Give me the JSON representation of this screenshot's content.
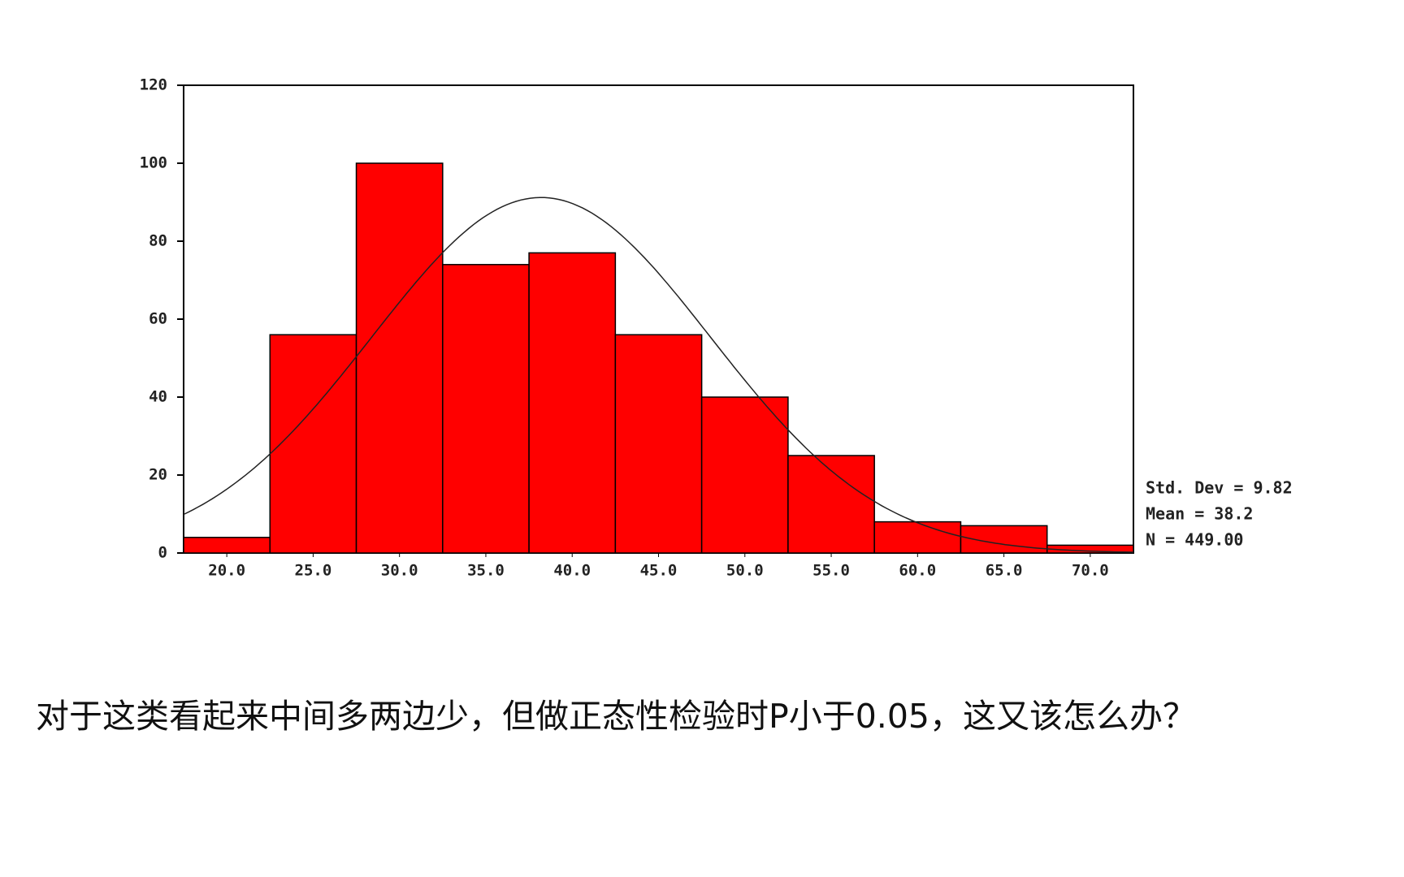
{
  "chart_data": {
    "type": "histogram",
    "bins": [
      17.5,
      22.5,
      27.5,
      32.5,
      37.5,
      42.5,
      47.5,
      52.5,
      57.5,
      62.5,
      67.5,
      72.5
    ],
    "values": [
      4,
      56,
      100,
      74,
      77,
      56,
      40,
      25,
      8,
      7,
      2
    ],
    "color": "#ff0000",
    "xlim": [
      17.5,
      72.5
    ],
    "xticks": [
      {
        "value": 20,
        "label": "20.0"
      },
      {
        "value": 25,
        "label": "25.0"
      },
      {
        "value": 30,
        "label": "30.0"
      },
      {
        "value": 35,
        "label": "35.0"
      },
      {
        "value": 40,
        "label": "40.0"
      },
      {
        "value": 45,
        "label": "45.0"
      },
      {
        "value": 50,
        "label": "50.0"
      },
      {
        "value": 55,
        "label": "55.0"
      },
      {
        "value": 60,
        "label": "60.0"
      },
      {
        "value": 65,
        "label": "65.0"
      },
      {
        "value": 70,
        "label": "70.0"
      }
    ],
    "ylim": [
      0,
      120
    ],
    "yticks": [
      0,
      20,
      40,
      60,
      80,
      100,
      120
    ],
    "normal_curve": true,
    "stats": [
      {
        "text": "Std. Dev = 9.82",
        "value": 9.82
      },
      {
        "text": "Mean = 38.2",
        "value": 38.2
      },
      {
        "text": "N = 449.00",
        "value": 449
      }
    ]
  },
  "caption": "对于这类看起来中间多两边少，但做正态性检验时P小于0.05，这又该怎么办？"
}
